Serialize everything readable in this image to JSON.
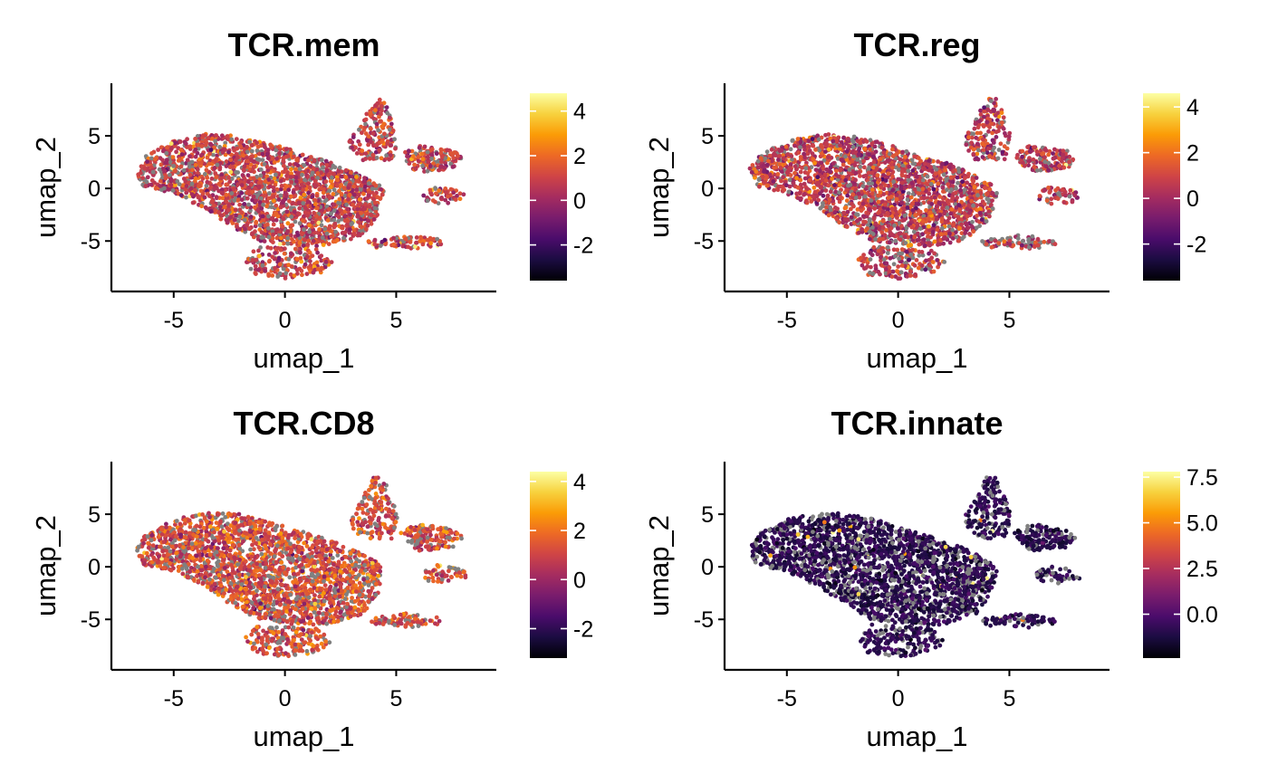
{
  "figure": {
    "x_axis_label": "umap_1",
    "y_axis_label": "umap_2",
    "na_color": "#808080",
    "palette": "inferno",
    "palette_stops": [
      "#000004",
      "#1b0c41",
      "#4a0c6b",
      "#781c6d",
      "#a52c60",
      "#cf4446",
      "#ed6925",
      "#fb9b06",
      "#f7d13d",
      "#fcffa4"
    ]
  },
  "chart_data": [
    {
      "type": "scatter",
      "title": "TCR.mem",
      "xlabel": "umap_1",
      "ylabel": "umap_2",
      "xlim": [
        -7.8,
        9.5
      ],
      "ylim": [
        -9.8,
        10.0
      ],
      "x_ticks": [
        -5,
        0,
        5
      ],
      "y_ticks": [
        5,
        0,
        -5
      ],
      "color_range": [
        -3.6,
        4.8
      ],
      "colorbar_ticks": [
        4,
        2,
        0,
        -2
      ],
      "score_mean": 0.9,
      "score_sd": 0.8,
      "na_fraction": 0.18,
      "seed": 11
    },
    {
      "type": "scatter",
      "title": "TCR.reg",
      "xlabel": "umap_1",
      "ylabel": "umap_2",
      "xlim": [
        -7.8,
        9.5
      ],
      "ylim": [
        -9.8,
        10.0
      ],
      "x_ticks": [
        -5,
        0,
        5
      ],
      "y_ticks": [
        5,
        0,
        -5
      ],
      "color_range": [
        -3.6,
        4.6
      ],
      "colorbar_ticks": [
        4,
        2,
        0,
        -2
      ],
      "score_mean": 0.6,
      "score_sd": 0.8,
      "na_fraction": 0.18,
      "seed": 23
    },
    {
      "type": "scatter",
      "title": "TCR.CD8",
      "xlabel": "umap_1",
      "ylabel": "umap_2",
      "xlim": [
        -7.8,
        9.5
      ],
      "ylim": [
        -9.8,
        10.0
      ],
      "x_ticks": [
        -5,
        0,
        5
      ],
      "y_ticks": [
        5,
        0,
        -5
      ],
      "color_range": [
        -3.2,
        4.4
      ],
      "colorbar_ticks": [
        4,
        2,
        0,
        -2
      ],
      "score_mean": 1.2,
      "score_sd": 0.8,
      "na_fraction": 0.18,
      "seed": 37
    },
    {
      "type": "scatter",
      "title": "TCR.innate",
      "xlabel": "umap_1",
      "ylabel": "umap_2",
      "xlim": [
        -7.8,
        9.5
      ],
      "ylim": [
        -9.8,
        10.0
      ],
      "x_ticks": [
        -5,
        0,
        5
      ],
      "y_ticks": [
        5,
        0,
        -5
      ],
      "color_range": [
        -2.4,
        7.8
      ],
      "colorbar_ticks": [
        "7.5",
        "5.0",
        "2.5",
        "0.0"
      ],
      "score_mean": -0.9,
      "score_sd": 0.45,
      "na_fraction": 0.2,
      "seed": 53
    }
  ]
}
